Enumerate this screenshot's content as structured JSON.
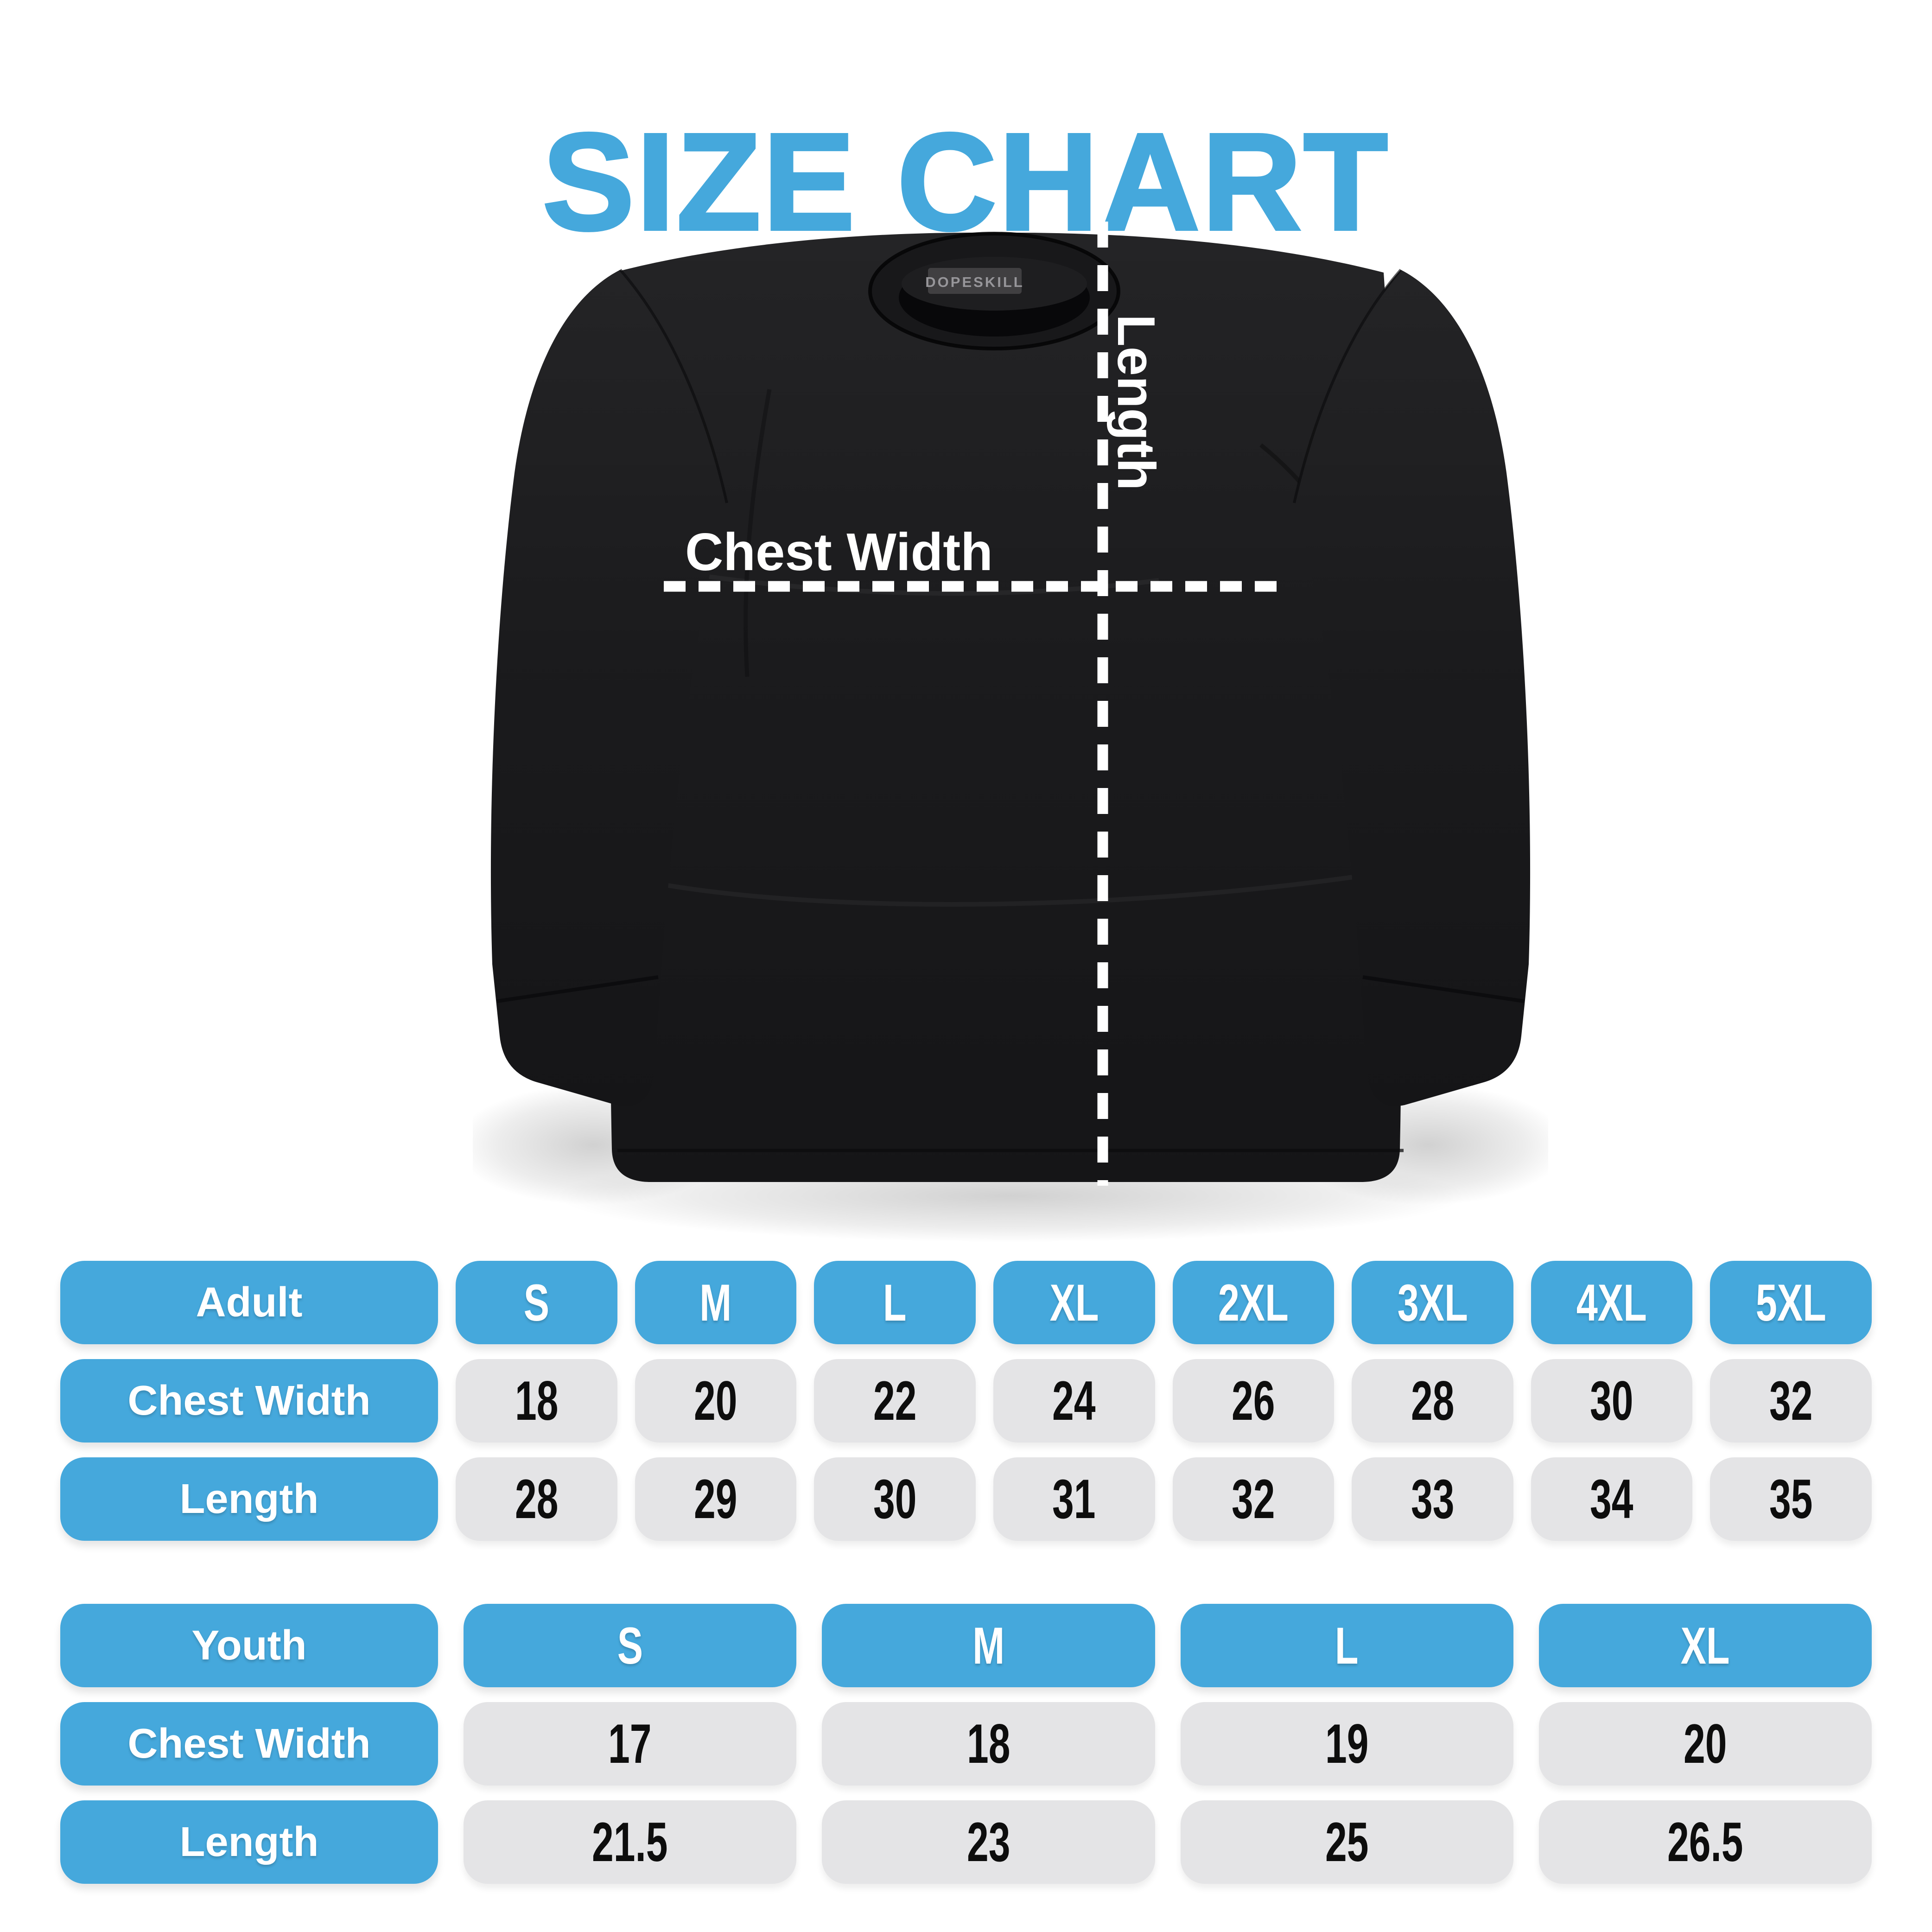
{
  "title": "SIZE CHART",
  "colors": {
    "accent_blue": "#45A8DC",
    "cell_gray": "#E4E4E6",
    "shirt_black": "#1B1B1D",
    "measure_line_white": "#FFFFFF"
  },
  "diagram": {
    "brand_label": "DOPESKILL",
    "chest_width_label": "Chest Width",
    "length_label": "Length"
  },
  "adult_table": {
    "header": {
      "label": "Adult",
      "sizes": [
        "S",
        "M",
        "L",
        "XL",
        "2XL",
        "3XL",
        "4XL",
        "5XL"
      ]
    },
    "rows": [
      {
        "label": "Chest Width",
        "values": [
          "18",
          "20",
          "22",
          "24",
          "26",
          "28",
          "30",
          "32"
        ]
      },
      {
        "label": "Length",
        "values": [
          "28",
          "29",
          "30",
          "31",
          "32",
          "33",
          "34",
          "35"
        ]
      }
    ]
  },
  "youth_table": {
    "header": {
      "label": "Youth",
      "sizes": [
        "S",
        "M",
        "L",
        "XL"
      ]
    },
    "rows": [
      {
        "label": "Chest Width",
        "values": [
          "17",
          "18",
          "19",
          "20"
        ]
      },
      {
        "label": "Length",
        "values": [
          "21.5",
          "23",
          "25",
          "26.5"
        ]
      }
    ]
  },
  "chart_data": [
    {
      "type": "table",
      "title": "Adult size chart (inches)",
      "columns": [
        "Adult",
        "S",
        "M",
        "L",
        "XL",
        "2XL",
        "3XL",
        "4XL",
        "5XL"
      ],
      "rows": [
        [
          "Chest Width",
          18,
          20,
          22,
          24,
          26,
          28,
          30,
          32
        ],
        [
          "Length",
          28,
          29,
          30,
          31,
          32,
          33,
          34,
          35
        ]
      ]
    },
    {
      "type": "table",
      "title": "Youth size chart (inches)",
      "columns": [
        "Youth",
        "S",
        "M",
        "L",
        "XL"
      ],
      "rows": [
        [
          "Chest Width",
          17,
          18,
          19,
          20
        ],
        [
          "Length",
          21.5,
          23,
          25,
          26.5
        ]
      ]
    }
  ]
}
